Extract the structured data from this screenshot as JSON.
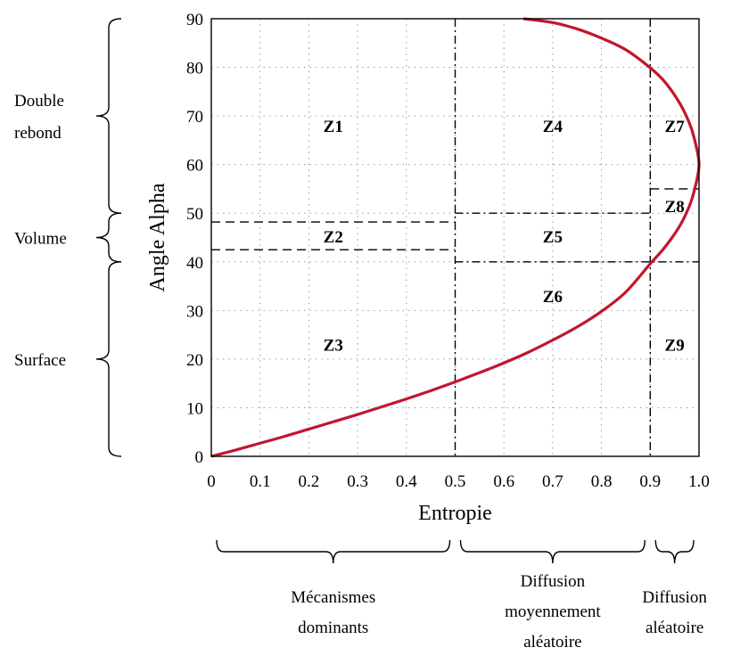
{
  "chart_data": {
    "type": "line",
    "xlabel": "Entropie",
    "ylabel": "Angle Alpha",
    "xlim": [
      0,
      1.0
    ],
    "ylim": [
      0,
      90
    ],
    "grid": true,
    "x_ticks": [
      "0",
      "0.1",
      "0.2",
      "0.3",
      "0.4",
      "0.5",
      "0.6",
      "0.7",
      "0.8",
      "0.9",
      "1.0"
    ],
    "y_ticks": [
      "0",
      "10",
      "20",
      "30",
      "40",
      "50",
      "60",
      "70",
      "80",
      "90"
    ],
    "curve_color": "#c0172e",
    "series": [
      {
        "x": [
          0,
          0.05,
          0.1,
          0.15,
          0.2,
          0.25,
          0.3,
          0.35,
          0.4,
          0.45,
          0.5,
          0.55,
          0.6,
          0.65,
          0.7,
          0.75,
          0.8,
          0.85,
          0.9,
          0.93,
          0.96,
          0.98,
          0.99,
          1.0,
          0.99,
          0.98,
          0.96,
          0.93,
          0.9,
          0.85,
          0.8,
          0.75,
          0.7,
          0.64
        ],
        "y": [
          0,
          1.3,
          2.7,
          4.1,
          5.6,
          7.1,
          8.6,
          10.2,
          11.8,
          13.5,
          15.3,
          17.2,
          19.2,
          21.4,
          23.9,
          26.6,
          29.8,
          33.8,
          39.6,
          43.0,
          47.3,
          51.4,
          54.5,
          60,
          65.5,
          68.6,
          72.7,
          77.0,
          79.9,
          83.6,
          86.0,
          87.9,
          89.2,
          90
        ]
      }
    ],
    "boundaries": {
      "vertical_x": [
        0.5,
        0.9
      ],
      "z2_lower_y": 42.5,
      "z2_upper_y": 48.2,
      "mid_lower_y": 40,
      "mid_upper_y": 50,
      "z8_upper_y": 55
    },
    "zones": [
      {
        "label": "Z1",
        "x": 0.25,
        "y": 68
      },
      {
        "label": "Z2",
        "x": 0.25,
        "y": 45.3
      },
      {
        "label": "Z3",
        "x": 0.25,
        "y": 23
      },
      {
        "label": "Z4",
        "x": 0.7,
        "y": 68
      },
      {
        "label": "Z5",
        "x": 0.7,
        "y": 45.3
      },
      {
        "label": "Z6",
        "x": 0.7,
        "y": 33
      },
      {
        "label": "Z7",
        "x": 0.95,
        "y": 68
      },
      {
        "label": "Z8",
        "x": 0.95,
        "y": 51.5
      },
      {
        "label": "Z9",
        "x": 0.95,
        "y": 23
      }
    ],
    "y_groups": [
      {
        "lines": [
          "Double",
          "rebond"
        ],
        "from": 50,
        "to": 90
      },
      {
        "lines": [
          "Volume"
        ],
        "from": 40,
        "to": 50
      },
      {
        "lines": [
          "Surface"
        ],
        "from": 0,
        "to": 40
      }
    ],
    "x_groups": [
      {
        "lines": [
          "Mécanismes",
          "dominants"
        ],
        "from": 0,
        "to": 0.5
      },
      {
        "lines": [
          "Diffusion",
          "moyennement",
          "aléatoire"
        ],
        "from": 0.5,
        "to": 0.9
      },
      {
        "lines": [
          "Diffusion",
          "aléatoire"
        ],
        "from": 0.9,
        "to": 1.0
      }
    ]
  }
}
